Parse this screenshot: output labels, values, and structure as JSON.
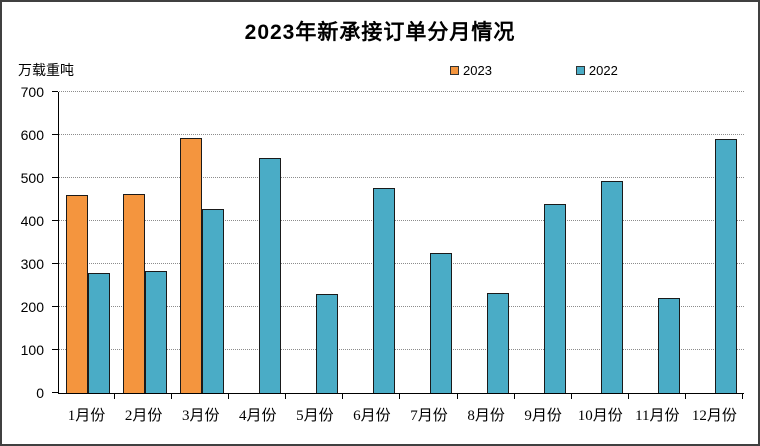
{
  "frame": {
    "background": "#FFFFFF",
    "border_color": "#404040"
  },
  "chart_data": {
    "type": "bar",
    "title": "2023年新承接订单分月情况",
    "ylabel": "万载重吨",
    "xlabel": "",
    "categories": [
      "1月份",
      "2月份",
      "3月份",
      "4月份",
      "5月份",
      "6月份",
      "7月份",
      "8月份",
      "9月份",
      "10月份",
      "11月份",
      "12月份"
    ],
    "series": [
      {
        "name": "2023",
        "color": "#F4953E",
        "values": [
          460,
          463,
          593,
          null,
          null,
          null,
          null,
          null,
          null,
          null,
          null,
          null
        ]
      },
      {
        "name": "2022",
        "color": "#4AACC6",
        "values": [
          280,
          283,
          428,
          546,
          230,
          477,
          326,
          232,
          440,
          493,
          220,
          591
        ]
      }
    ],
    "ylim": [
      0,
      700
    ],
    "ytick_step": 100,
    "grid": "horizontal-dotted",
    "gridline_color": "#8C8C8C",
    "bar_border_color": "#1A1A1A",
    "legend_position": "top-center-right"
  }
}
